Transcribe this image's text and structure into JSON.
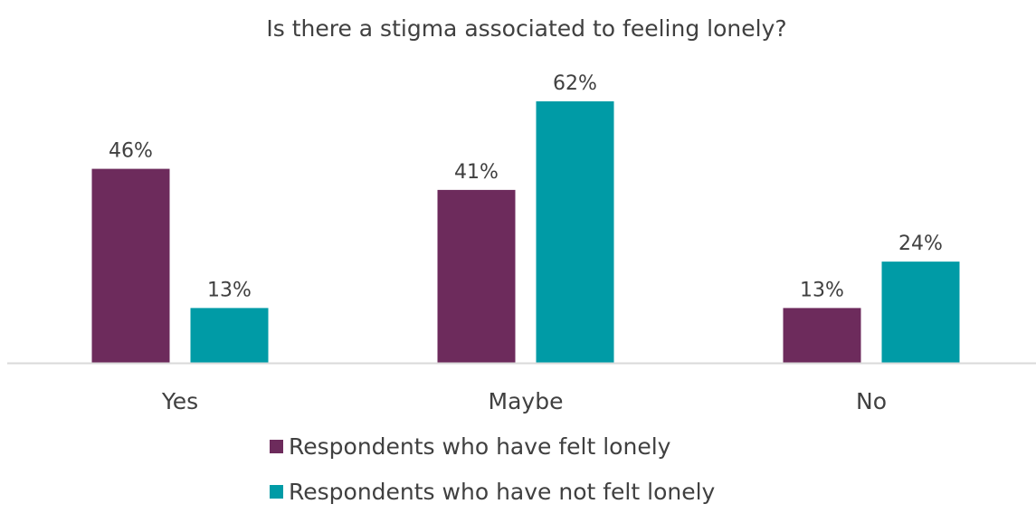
{
  "chart_data": {
    "type": "bar",
    "title": "Is there a stigma associated to feeling lonely?",
    "categories": [
      "Yes",
      "Maybe",
      "No"
    ],
    "series": [
      {
        "name": "Respondents who have felt lonely",
        "values": [
          46,
          41,
          13
        ],
        "labels": [
          "46%",
          "41%",
          "13%"
        ],
        "color": "#6d2b5c"
      },
      {
        "name": "Respondents who have not felt lonely",
        "values": [
          13,
          62,
          24
        ],
        "labels": [
          "13%",
          "62%",
          "24%"
        ],
        "color": "#009ba6"
      }
    ],
    "value_unit": "%",
    "ylim": [
      0,
      62
    ],
    "grid": false,
    "legend_position": "bottom"
  }
}
